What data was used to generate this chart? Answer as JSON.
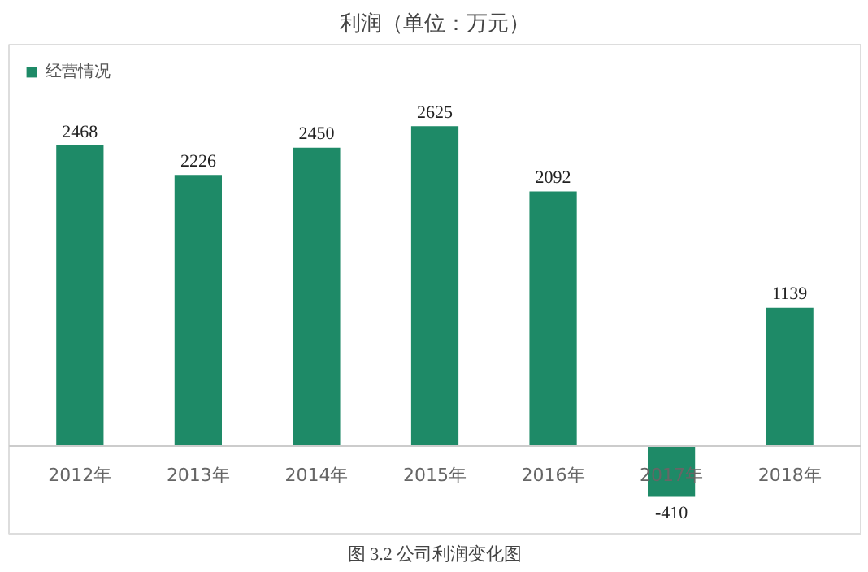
{
  "chart_data": {
    "type": "bar",
    "title": "利润（单位：万元）",
    "categories": [
      "2012年",
      "2013年",
      "2014年",
      "2015年",
      "2016年",
      "2017年",
      "2018年"
    ],
    "series": [
      {
        "name": "经营情况",
        "color": "#1e8a67",
        "values": [
          2468,
          2226,
          2450,
          2625,
          2092,
          -410,
          1139
        ]
      }
    ],
    "data_labels": true,
    "legend": "top left",
    "grid": false,
    "annotations": [
      "图 3.2 公司利润变化图"
    ]
  }
}
